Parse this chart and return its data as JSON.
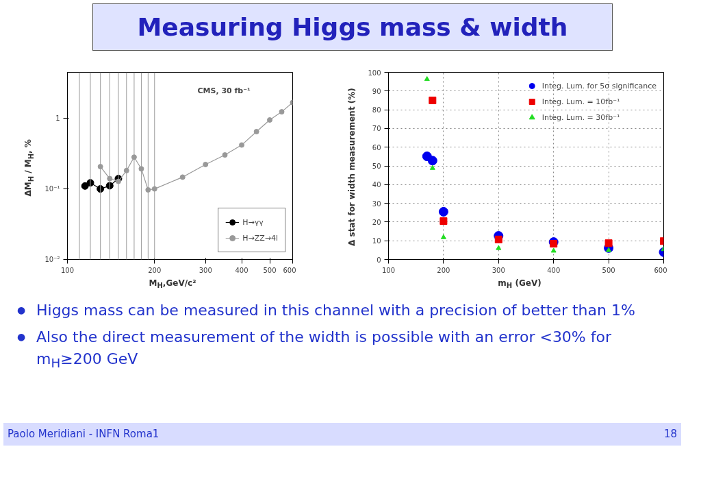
{
  "chart_data": [
    {
      "type": "line",
      "log": "xy",
      "xlabel": "M$_{H}$,GeV/c²",
      "ylabel": "ΔM$_{H}$ / M$_{H}$, %",
      "annotations": [
        "CMS, 30 fb⁻¹"
      ],
      "xlim": [
        100,
        600
      ],
      "xticks": [
        100,
        200,
        300,
        400,
        500,
        600
      ],
      "ylim": [
        0.01,
        4.5
      ],
      "yticks": [
        {
          "value": 0.01,
          "label": "10⁻²"
        },
        {
          "value": 0.1,
          "label": "10⁻¹"
        },
        1
      ],
      "grid": false,
      "legend": "bottom right",
      "marker": "circle",
      "line_style": "solid",
      "ref_lines": [
        {
          "axis": "x",
          "value": 110,
          "label": null,
          "color": "#999999"
        },
        {
          "axis": "x",
          "value": 120,
          "label": null,
          "color": "#999999"
        },
        {
          "axis": "x",
          "value": 130,
          "label": null,
          "color": "#999999"
        },
        {
          "axis": "x",
          "value": 140,
          "label": null,
          "color": "#999999"
        },
        {
          "axis": "x",
          "value": 150,
          "label": null,
          "color": "#999999"
        },
        {
          "axis": "x",
          "value": 160,
          "label": null,
          "color": "#999999"
        },
        {
          "axis": "x",
          "value": 170,
          "label": null,
          "color": "#999999"
        },
        {
          "axis": "x",
          "value": 180,
          "label": null,
          "color": "#999999"
        },
        {
          "axis": "x",
          "value": 190,
          "label": null,
          "color": "#999999"
        },
        {
          "axis": "x",
          "value": 200,
          "label": null,
          "color": "#999999"
        }
      ],
      "series": [
        {
          "name": "H→γγ",
          "color": "#000000",
          "x": [
            115,
            120,
            130,
            140,
            150
          ],
          "values": [
            0.11,
            0.122,
            0.1,
            0.111,
            0.14
          ]
        },
        {
          "name": "H→ZZ→4l",
          "color": "#999999",
          "x": [
            130,
            140,
            150,
            160,
            170,
            180,
            190,
            200,
            250,
            300,
            350,
            400,
            450,
            500,
            550,
            600
          ],
          "values": [
            0.207,
            0.14,
            0.128,
            0.182,
            0.282,
            0.193,
            0.097,
            0.1,
            0.147,
            0.222,
            0.303,
            0.419,
            0.65,
            0.95,
            1.24,
            1.68
          ]
        }
      ]
    },
    {
      "type": "scatter",
      "xlabel": "m$_{H}$ (GeV)",
      "ylabel": "Δ stat for width measurement (%)",
      "xlim": [
        100,
        600
      ],
      "xticks": [
        100,
        200,
        300,
        400,
        500,
        600
      ],
      "ylim": [
        0,
        100
      ],
      "yticks": [
        0,
        10,
        20,
        30,
        40,
        50,
        60,
        70,
        80,
        90,
        100
      ],
      "grid": true,
      "legend": "top right",
      "series": [
        {
          "name": "Integ. Lum. for 5σ significance",
          "color": "#0000ee",
          "marker": "circle",
          "x": [
            170,
            180,
            200,
            300,
            400,
            500,
            600
          ],
          "values": [
            55.1,
            52.8,
            25.5,
            12.6,
            9.3,
            6.1,
            3.9
          ]
        },
        {
          "name": "Integ. Lum. = 10fb⁻¹",
          "color": "#ee0000",
          "marker": "square",
          "x": [
            180,
            200,
            300,
            400,
            500,
            600
          ],
          "values": [
            85,
            20.5,
            10.7,
            8.4,
            8.7,
            9.8
          ]
        },
        {
          "name": "Integ. Lum. = 30fb⁻¹",
          "color": "#22dd22",
          "marker": "triangle",
          "x": [
            170,
            180,
            200,
            300,
            400,
            500,
            600
          ],
          "values": [
            96.3,
            48.8,
            11.8,
            6.0,
            4.6,
            4.9,
            5.4
          ]
        }
      ]
    },
    {
      "type": "other",
      "title": "Measuring Higgs mass & width",
      "annotations": [
        "● Higgs mass can be measured in this channel with a precision of better than 1%",
        "● Also the direct measurement of the width is possible with an error <30% for m$_{H}$≥200 GeV",
        "Paolo Meridiani  - INFN Roma1",
        "18"
      ]
    }
  ]
}
